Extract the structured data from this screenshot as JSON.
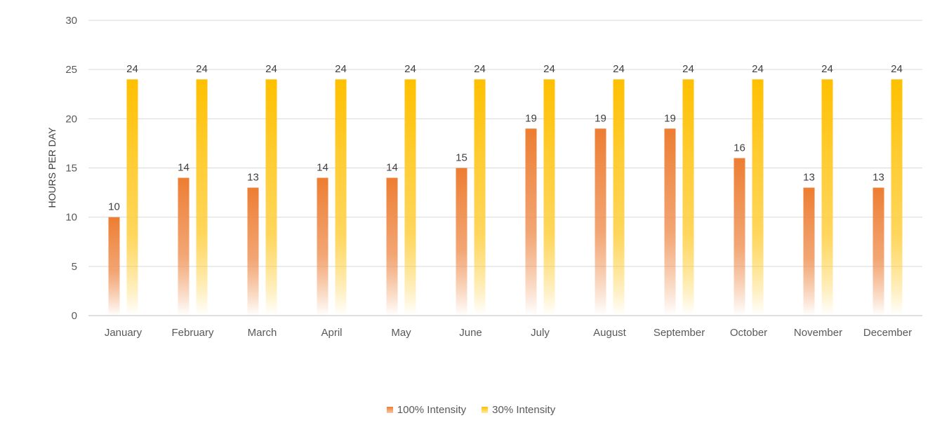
{
  "chart_data": {
    "type": "bar",
    "ylabel": "HOURS PER DAY",
    "ylim": [
      0,
      30
    ],
    "yticks": [
      0,
      5,
      10,
      15,
      20,
      25,
      30
    ],
    "grid": true,
    "legend_position": "bottom",
    "categories": [
      "January",
      "February",
      "March",
      "April",
      "May",
      "June",
      "July",
      "August",
      "September",
      "October",
      "November",
      "December"
    ],
    "series": [
      {
        "name": "100% Intensity",
        "color": "#ED7D31",
        "values": [
          10,
          14,
          13,
          14,
          14,
          15,
          19,
          19,
          19,
          16,
          13,
          13
        ]
      },
      {
        "name": "30% Intensity",
        "color": "#FFC000",
        "values": [
          24,
          24,
          24,
          24,
          24,
          24,
          24,
          24,
          24,
          24,
          24,
          24
        ]
      }
    ]
  }
}
